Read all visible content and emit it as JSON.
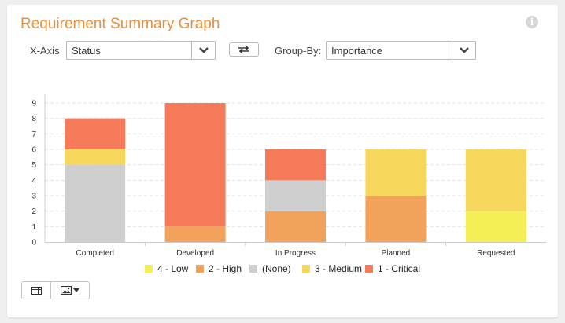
{
  "widget": {
    "title": "Requirement Summary Graph",
    "info_icon": "info-icon"
  },
  "controls": {
    "xaxis_label": "X-Axis",
    "xaxis_value": "Status",
    "swap_icon": "swap-arrows-icon",
    "groupby_label": "Group-By:",
    "groupby_value": "Importance"
  },
  "toolbar": {
    "grid_icon": "table-grid-icon",
    "image_icon": "image-icon",
    "image_dropdown_icon": "caret-down-icon"
  },
  "colors": {
    "title": "#e88f3e",
    "4 - Low": "#f3ef55",
    "2 - High": "#f2a25a",
    "(None)": "#cfcfcf",
    "3 - Medium": "#f6d75b",
    "1 - Critical": "#f47a5a"
  },
  "chart_data": {
    "type": "bar",
    "stacked": true,
    "categories": [
      "Completed",
      "Developed",
      "In Progress",
      "Planned",
      "Requested"
    ],
    "series": [
      {
        "name": "4 - Low",
        "color": "#f3ef55",
        "values": [
          0,
          0,
          0,
          0,
          2
        ]
      },
      {
        "name": "2 - High",
        "color": "#f2a25a",
        "values": [
          0,
          1,
          2,
          3,
          0
        ]
      },
      {
        "name": "(None)",
        "color": "#cfcfcf",
        "values": [
          5,
          0,
          2,
          0,
          0
        ]
      },
      {
        "name": "3 - Medium",
        "color": "#f6d75b",
        "values": [
          1,
          0,
          0,
          3,
          4
        ]
      },
      {
        "name": "1 - Critical",
        "color": "#f47a5a",
        "values": [
          2,
          8,
          2,
          0,
          0
        ]
      }
    ],
    "yticks": [
      0,
      1,
      2,
      3,
      4,
      5,
      6,
      7,
      8,
      9
    ],
    "ylim": [
      0,
      9
    ],
    "grid": true,
    "legend_position": "bottom"
  }
}
